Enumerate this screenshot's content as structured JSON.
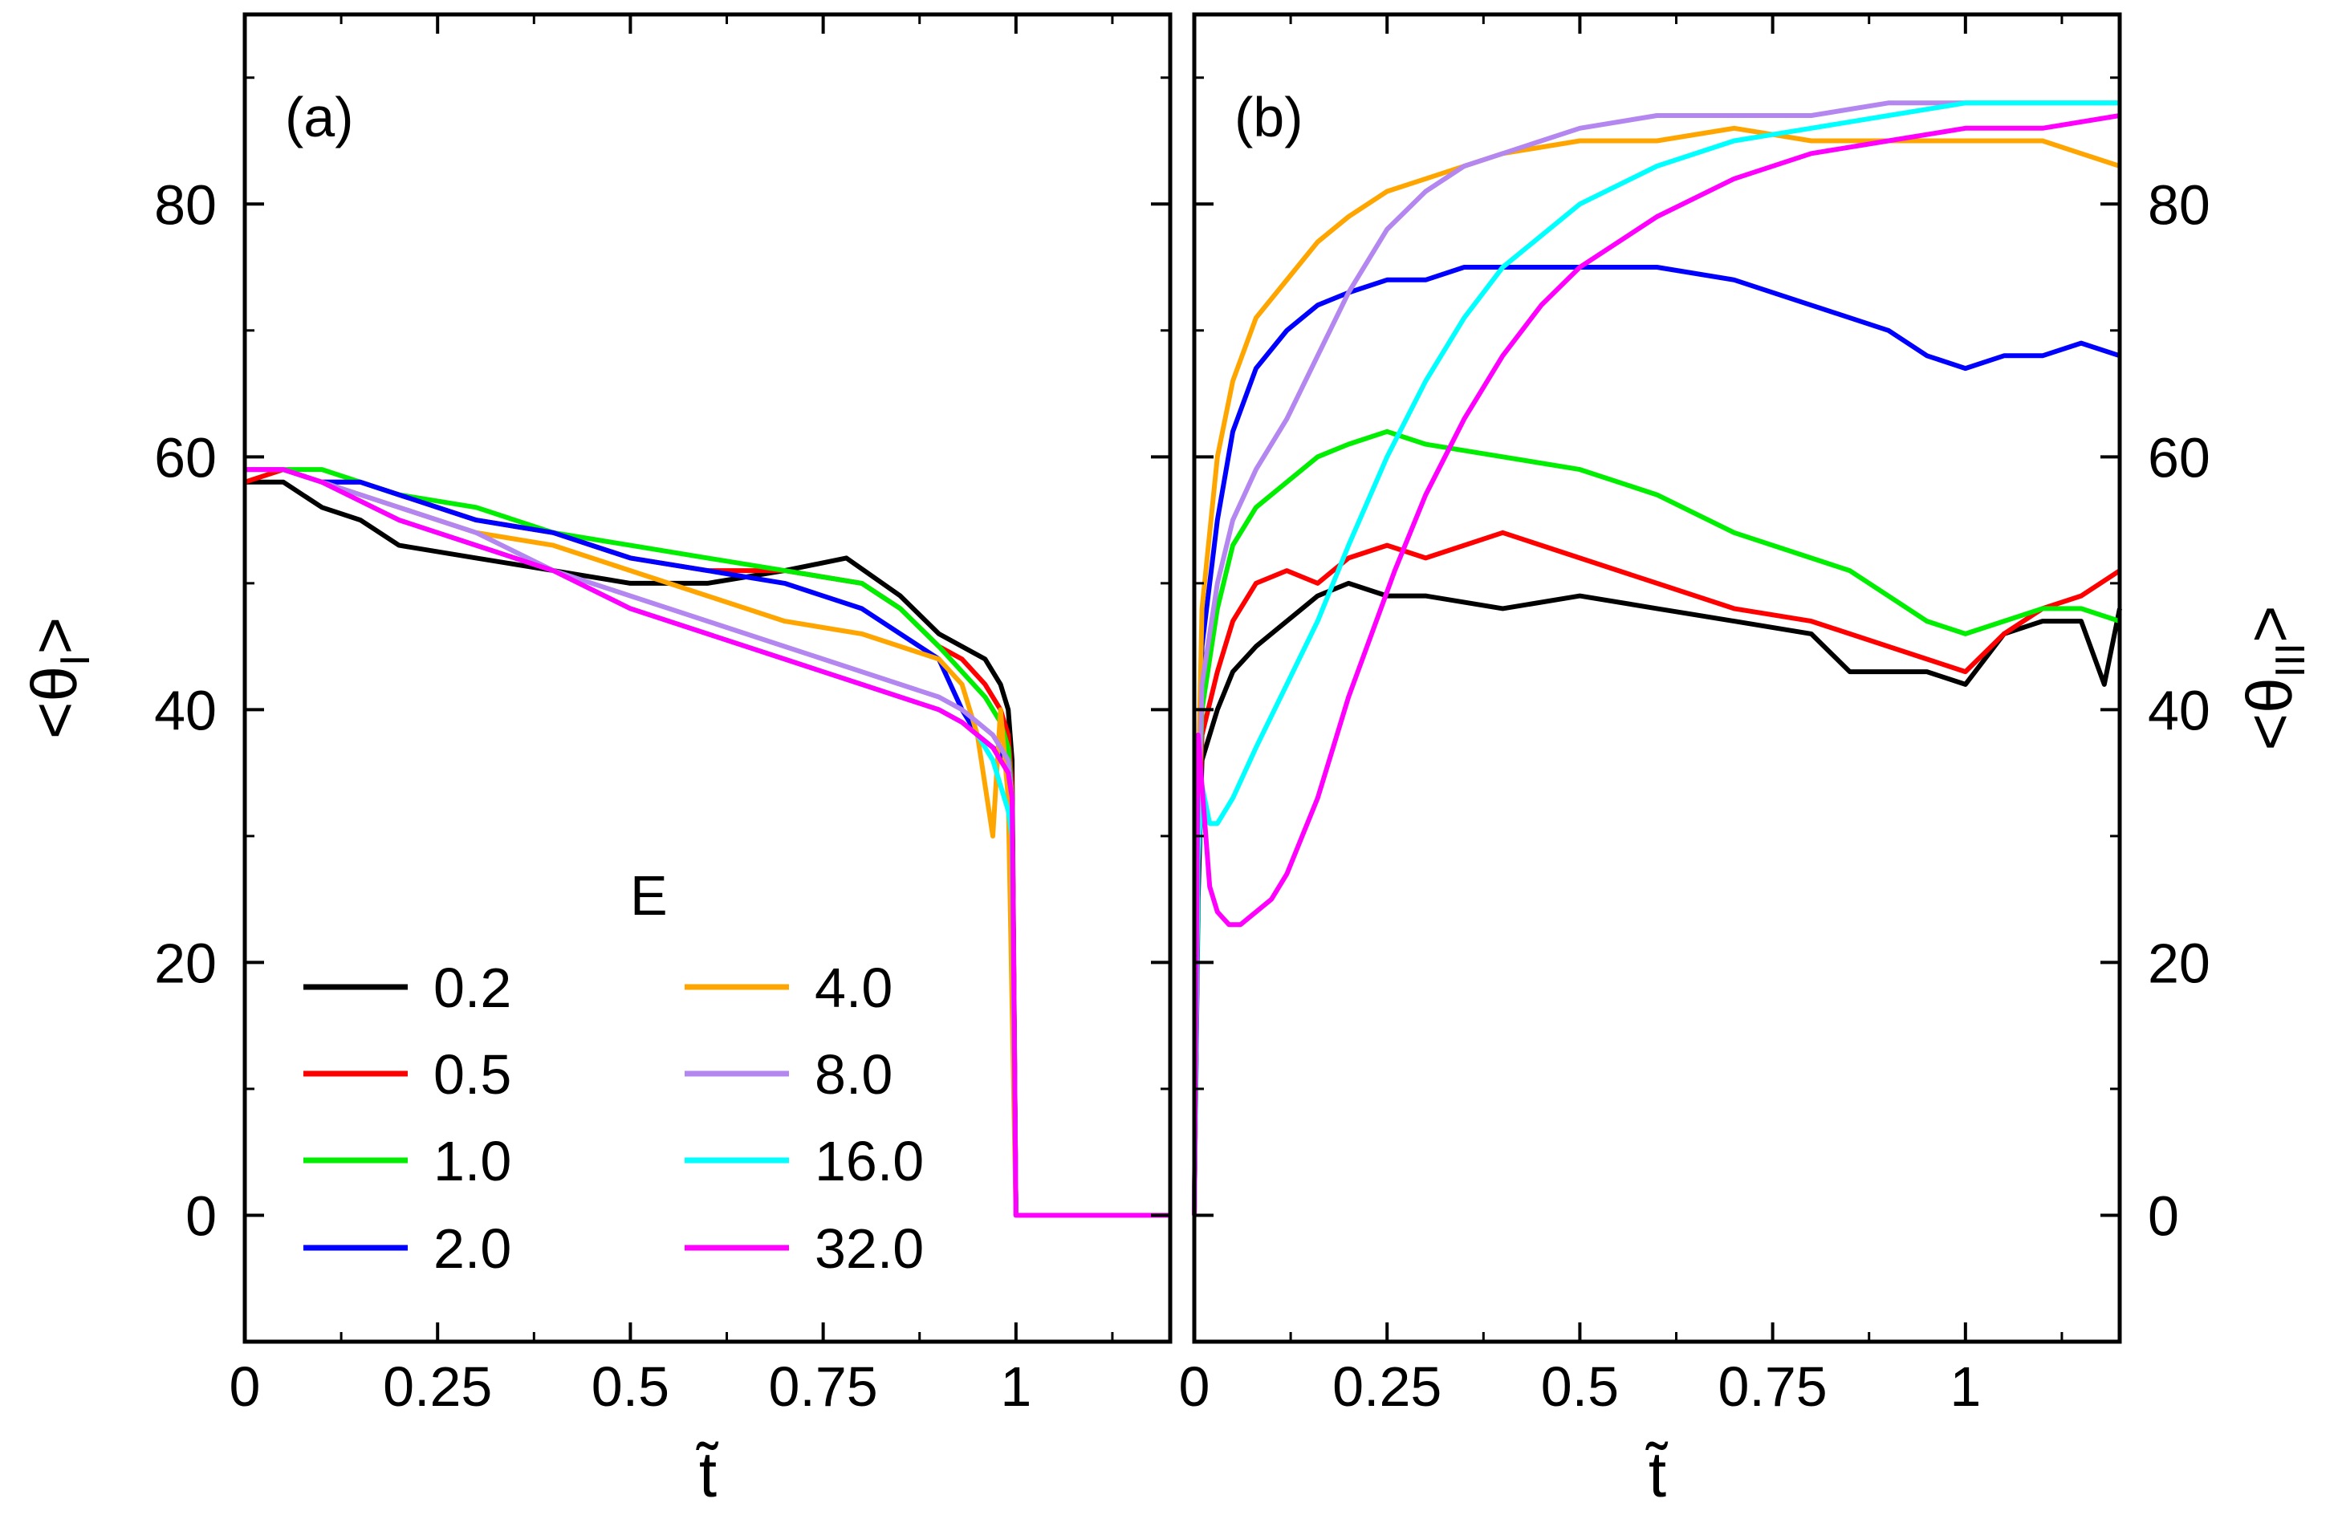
{
  "chart_data": {
    "type": "line",
    "legend_title": "E",
    "legend_position": "bottom-left of panel (a)",
    "series_colors": {
      "0.2": "#000000",
      "0.5": "#ff0000",
      "1.0": "#00ee00",
      "2.0": "#0000ff",
      "4.0": "#ffa500",
      "8.0": "#b386f0",
      "16.0": "#00ffff",
      "32.0": "#ff00ff"
    },
    "legend_entries": [
      "0.2",
      "0.5",
      "1.0",
      "2.0",
      "4.0",
      "8.0",
      "16.0",
      "32.0"
    ],
    "panels": [
      {
        "id": "a",
        "panel_label": "(a)",
        "ylabel": "<θ_I>",
        "ylabel_main": "<θ",
        "ylabel_sub": "I",
        "ylabel_end": ">",
        "xlabel": "t̃",
        "xlim": [
          0,
          1.2
        ],
        "ylim": [
          -10,
          95
        ],
        "x_ticks": [
          0,
          0.25,
          0.5,
          0.75,
          1
        ],
        "x_tick_labels": [
          "0",
          "0.25",
          "0.5",
          "0.75",
          "1"
        ],
        "y_ticks": [
          0,
          20,
          40,
          60,
          80
        ],
        "y_tick_labels": [
          "0",
          "20",
          "40",
          "60",
          "80"
        ],
        "series": [
          {
            "name": "0.2",
            "x": [
              0,
              0.05,
              0.1,
              0.15,
              0.2,
              0.3,
              0.4,
              0.5,
              0.6,
              0.7,
              0.78,
              0.85,
              0.9,
              0.93,
              0.96,
              0.98,
              0.99,
              0.995,
              1.0,
              1.2
            ],
            "y": [
              58,
              58,
              56,
              55,
              53,
              52,
              51,
              50,
              50,
              51,
              52,
              49,
              46,
              45,
              44,
              42,
              40,
              36,
              0,
              0
            ]
          },
          {
            "name": "0.5",
            "x": [
              0,
              0.05,
              0.1,
              0.15,
              0.2,
              0.3,
              0.4,
              0.5,
              0.6,
              0.7,
              0.8,
              0.85,
              0.9,
              0.93,
              0.96,
              0.98,
              0.99,
              0.995,
              1.0,
              1.2
            ],
            "y": [
              58,
              59,
              58,
              58,
              57,
              55,
              54,
              52,
              51,
              51,
              50,
              48,
              45,
              44,
              42,
              40,
              38,
              34,
              0,
              0
            ]
          },
          {
            "name": "1.0",
            "x": [
              0,
              0.05,
              0.1,
              0.15,
              0.2,
              0.3,
              0.4,
              0.5,
              0.6,
              0.7,
              0.8,
              0.85,
              0.9,
              0.93,
              0.96,
              0.98,
              0.99,
              0.995,
              1.0,
              1.2
            ],
            "y": [
              59,
              59,
              59,
              58,
              57,
              56,
              54,
              53,
              52,
              51,
              50,
              48,
              45,
              43,
              41,
              39,
              37,
              33,
              0,
              0
            ]
          },
          {
            "name": "2.0",
            "x": [
              0,
              0.05,
              0.1,
              0.15,
              0.2,
              0.3,
              0.4,
              0.5,
              0.6,
              0.7,
              0.8,
              0.85,
              0.9,
              0.93,
              0.95,
              0.97,
              0.99,
              0.995,
              1.0,
              1.2
            ],
            "y": [
              59,
              59,
              58,
              58,
              57,
              55,
              54,
              52,
              51,
              50,
              48,
              46,
              44,
              40,
              38,
              37,
              36,
              33,
              0,
              0
            ]
          },
          {
            "name": "4.0",
            "x": [
              0,
              0.05,
              0.1,
              0.2,
              0.3,
              0.4,
              0.5,
              0.6,
              0.7,
              0.8,
              0.85,
              0.9,
              0.93,
              0.95,
              0.96,
              0.97,
              0.98,
              0.99,
              1.0,
              1.2
            ],
            "y": [
              59,
              59,
              58,
              56,
              54,
              53,
              51,
              49,
              47,
              46,
              45,
              44,
              42,
              38,
              34,
              30,
              40,
              33,
              0,
              0
            ]
          },
          {
            "name": "8.0",
            "x": [
              0,
              0.05,
              0.1,
              0.2,
              0.3,
              0.4,
              0.5,
              0.6,
              0.7,
              0.8,
              0.85,
              0.9,
              0.93,
              0.95,
              0.97,
              0.98,
              0.99,
              0.995,
              1.0,
              1.2
            ],
            "y": [
              59,
              59,
              58,
              56,
              54,
              51,
              49,
              47,
              45,
              43,
              42,
              41,
              40,
              39,
              38,
              37,
              36,
              33,
              0,
              0
            ]
          },
          {
            "name": "16.0",
            "x": [
              0,
              0.05,
              0.1,
              0.2,
              0.3,
              0.4,
              0.5,
              0.6,
              0.7,
              0.8,
              0.85,
              0.9,
              0.93,
              0.95,
              0.97,
              0.98,
              0.99,
              0.995,
              1.0,
              1.2
            ],
            "y": [
              59,
              59,
              58,
              55,
              53,
              51,
              48,
              46,
              44,
              42,
              41,
              40,
              39,
              38,
              36,
              34,
              32,
              30,
              0,
              0
            ]
          },
          {
            "name": "32.0",
            "x": [
              0,
              0.05,
              0.1,
              0.2,
              0.3,
              0.4,
              0.5,
              0.6,
              0.7,
              0.8,
              0.85,
              0.9,
              0.93,
              0.95,
              0.97,
              0.98,
              0.99,
              0.995,
              1.0,
              1.2
            ],
            "y": [
              59,
              59,
              58,
              55,
              53,
              51,
              48,
              46,
              44,
              42,
              41,
              40,
              39,
              38,
              37,
              36,
              35,
              33,
              0,
              0
            ]
          }
        ]
      },
      {
        "id": "b",
        "panel_label": "(b)",
        "ylabel": "<θ_III>",
        "ylabel_main": "<θ",
        "ylabel_sub": "III",
        "ylabel_end": ">",
        "xlabel": "t̃",
        "xlim": [
          0,
          1.2
        ],
        "ylim": [
          -10,
          95
        ],
        "x_ticks": [
          0,
          0.25,
          0.5,
          0.75,
          1
        ],
        "x_tick_labels": [
          "0",
          "0.25",
          "0.5",
          "0.75",
          "1"
        ],
        "y_ticks": [
          0,
          20,
          40,
          60,
          80
        ],
        "y_tick_labels": [
          "0",
          "20",
          "40",
          "60",
          "80"
        ],
        "series": [
          {
            "name": "0.2",
            "x": [
              0,
              0.005,
              0.01,
              0.03,
              0.05,
              0.08,
              0.12,
              0.16,
              0.2,
              0.25,
              0.3,
              0.4,
              0.5,
              0.6,
              0.7,
              0.8,
              0.85,
              0.9,
              0.95,
              1.0,
              1.05,
              1.1,
              1.15,
              1.18,
              1.2
            ],
            "y": [
              0,
              25,
              36,
              40,
              43,
              45,
              47,
              49,
              50,
              49,
              49,
              48,
              49,
              48,
              47,
              46,
              43,
              43,
              43,
              42,
              46,
              47,
              47,
              42,
              48
            ]
          },
          {
            "name": "0.5",
            "x": [
              0,
              0.005,
              0.01,
              0.03,
              0.05,
              0.08,
              0.12,
              0.16,
              0.2,
              0.25,
              0.3,
              0.35,
              0.4,
              0.5,
              0.6,
              0.7,
              0.8,
              0.9,
              0.95,
              1.0,
              1.05,
              1.1,
              1.15,
              1.2
            ],
            "y": [
              0,
              28,
              38,
              43,
              47,
              50,
              51,
              50,
              52,
              53,
              52,
              53,
              54,
              52,
              50,
              48,
              47,
              45,
              44,
              43,
              46,
              48,
              49,
              51
            ]
          },
          {
            "name": "1.0",
            "x": [
              0,
              0.005,
              0.01,
              0.03,
              0.05,
              0.08,
              0.12,
              0.16,
              0.2,
              0.25,
              0.3,
              0.4,
              0.5,
              0.6,
              0.7,
              0.8,
              0.85,
              0.9,
              0.95,
              1.0,
              1.05,
              1.1,
              1.15,
              1.2
            ],
            "y": [
              0,
              30,
              40,
              48,
              53,
              56,
              58,
              60,
              61,
              62,
              61,
              60,
              59,
              57,
              54,
              52,
              51,
              49,
              47,
              46,
              47,
              48,
              48,
              47
            ]
          },
          {
            "name": "2.0",
            "x": [
              0,
              0.005,
              0.01,
              0.03,
              0.05,
              0.08,
              0.12,
              0.16,
              0.2,
              0.25,
              0.3,
              0.35,
              0.4,
              0.5,
              0.6,
              0.7,
              0.8,
              0.9,
              0.95,
              1.0,
              1.05,
              1.1,
              1.15,
              1.2
            ],
            "y": [
              0,
              32,
              45,
              55,
              62,
              67,
              70,
              72,
              73,
              74,
              74,
              75,
              75,
              75,
              75,
              74,
              72,
              70,
              68,
              67,
              68,
              68,
              69,
              68
            ]
          },
          {
            "name": "4.0",
            "x": [
              0,
              0.005,
              0.01,
              0.03,
              0.05,
              0.08,
              0.12,
              0.16,
              0.2,
              0.25,
              0.3,
              0.4,
              0.5,
              0.6,
              0.7,
              0.8,
              0.9,
              1.0,
              1.1,
              1.15,
              1.2
            ],
            "y": [
              0,
              34,
              48,
              60,
              66,
              71,
              74,
              77,
              79,
              81,
              82,
              84,
              85,
              85,
              86,
              85,
              85,
              85,
              85,
              84,
              83
            ]
          },
          {
            "name": "8.0",
            "x": [
              0,
              0.005,
              0.01,
              0.03,
              0.05,
              0.08,
              0.12,
              0.16,
              0.2,
              0.25,
              0.3,
              0.35,
              0.4,
              0.5,
              0.6,
              0.7,
              0.8,
              0.9,
              1.0,
              1.1,
              1.2
            ],
            "y": [
              0,
              30,
              42,
              50,
              55,
              59,
              63,
              68,
              73,
              78,
              81,
              83,
              84,
              86,
              87,
              87,
              87,
              88,
              88,
              88,
              88
            ]
          },
          {
            "name": "16.0",
            "x": [
              0,
              0.005,
              0.01,
              0.02,
              0.03,
              0.05,
              0.08,
              0.12,
              0.16,
              0.2,
              0.25,
              0.3,
              0.35,
              0.4,
              0.5,
              0.6,
              0.7,
              0.8,
              0.9,
              1.0,
              1.1,
              1.2
            ],
            "y": [
              0,
              28,
              34,
              31,
              31,
              33,
              37,
              42,
              47,
              53,
              60,
              66,
              71,
              75,
              80,
              83,
              85,
              86,
              87,
              88,
              88,
              88
            ]
          },
          {
            "name": "32.0",
            "x": [
              0,
              0.005,
              0.01,
              0.02,
              0.03,
              0.045,
              0.06,
              0.08,
              0.1,
              0.12,
              0.14,
              0.16,
              0.18,
              0.2,
              0.23,
              0.26,
              0.3,
              0.35,
              0.4,
              0.45,
              0.5,
              0.6,
              0.7,
              0.8,
              0.9,
              1.0,
              1.1,
              1.2
            ],
            "y": [
              0,
              38,
              34,
              26,
              24,
              23,
              23,
              24,
              25,
              27,
              30,
              33,
              37,
              41,
              46,
              51,
              57,
              63,
              68,
              72,
              75,
              79,
              82,
              84,
              85,
              86,
              86,
              87
            ]
          }
        ]
      }
    ]
  }
}
